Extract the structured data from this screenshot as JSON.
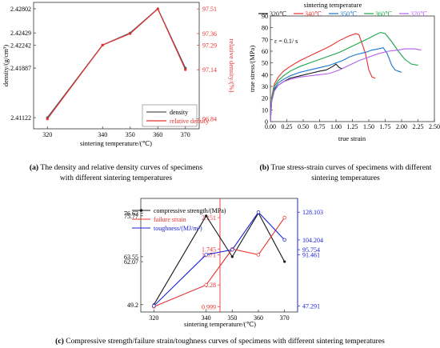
{
  "chart_data": [
    {
      "type": "line",
      "panel_label": "a",
      "caption": [
        "The density and relative density curves of specimens",
        "with different sintering temperatures"
      ],
      "xlabel": "sintering temperature/(℃)",
      "ylabel_left": "density/(g/cm³)",
      "ylabel_right": "relative density/(%)",
      "x_ticks": [
        "320",
        "340",
        "350",
        "360",
        "370"
      ],
      "y_left_ticks": [
        "2.42802",
        "2.42429",
        "2.42242",
        "2.41887",
        "2.41122"
      ],
      "y_right_ticks": [
        "97.51",
        "97.36",
        "97.29",
        "97.14",
        "96.84"
      ],
      "legend_position": "bottom-right",
      "colors": {
        "density": "#555555",
        "relative_density": "#e8302f"
      },
      "series": [
        {
          "name": "density",
          "x": [
            320,
            340,
            350,
            360,
            370
          ],
          "y": [
            2.41122,
            2.42242,
            2.42429,
            2.42802,
            2.41887
          ]
        },
        {
          "name": "relative density",
          "x": [
            320,
            340,
            350,
            360,
            370
          ],
          "y": [
            96.84,
            97.29,
            97.36,
            97.51,
            97.14
          ]
        }
      ]
    },
    {
      "type": "line",
      "panel_label": "b",
      "caption": [
        "True stress-strain curves of specimens with different",
        "sintering temperatures"
      ],
      "title": "sintering temperature",
      "xlabel": "true strain",
      "ylabel": "true stress/(MPa)",
      "annotation": "ε = 0.1/ s",
      "xlim": [
        0,
        2.5
      ],
      "ylim": [
        0,
        90
      ],
      "x_ticks": [
        "0.00",
        "0.25",
        "0.50",
        "0.75",
        "1.00",
        "1.25",
        "1.50",
        "1.75",
        "2.00",
        "2.25",
        "2.50"
      ],
      "y_ticks": [
        "0",
        "10",
        "20",
        "30",
        "40",
        "50",
        "60",
        "70",
        "80",
        "90"
      ],
      "legend_position": "top",
      "series": [
        {
          "name": "320℃",
          "color": "#1a1a1a",
          "points": [
            [
              0,
              0
            ],
            [
              0.02,
              18
            ],
            [
              0.06,
              27
            ],
            [
              0.12,
              31
            ],
            [
              0.2,
              34
            ],
            [
              0.3,
              37
            ],
            [
              0.45,
              39
            ],
            [
              0.6,
              41
            ],
            [
              0.75,
              43
            ],
            [
              0.85,
              44
            ],
            [
              0.95,
              47
            ],
            [
              1.0,
              49
            ],
            [
              1.05,
              46
            ],
            [
              1.1,
              45
            ]
          ]
        },
        {
          "name": "340℃",
          "color": "#e8302f",
          "points": [
            [
              0,
              0
            ],
            [
              0.02,
              21
            ],
            [
              0.06,
              32
            ],
            [
              0.12,
              38
            ],
            [
              0.2,
              43
            ],
            [
              0.3,
              47
            ],
            [
              0.45,
              52
            ],
            [
              0.6,
              56
            ],
            [
              0.75,
              60
            ],
            [
              0.9,
              64
            ],
            [
              1.05,
              69
            ],
            [
              1.2,
              73
            ],
            [
              1.3,
              75
            ],
            [
              1.35,
              74
            ],
            [
              1.45,
              58
            ],
            [
              1.5,
              44
            ],
            [
              1.55,
              38
            ],
            [
              1.6,
              37
            ]
          ]
        },
        {
          "name": "350℃",
          "color": "#1874cd",
          "points": [
            [
              0,
              0
            ],
            [
              0.02,
              19
            ],
            [
              0.06,
              28
            ],
            [
              0.12,
              33
            ],
            [
              0.2,
              36
            ],
            [
              0.3,
              39
            ],
            [
              0.45,
              42
            ],
            [
              0.6,
              44
            ],
            [
              0.75,
              46
            ],
            [
              0.9,
              48
            ],
            [
              1.0,
              50
            ],
            [
              1.1,
              52
            ],
            [
              1.2,
              55
            ],
            [
              1.3,
              57
            ],
            [
              1.45,
              59
            ],
            [
              1.55,
              61
            ],
            [
              1.65,
              62
            ],
            [
              1.72,
              63
            ],
            [
              1.78,
              58
            ],
            [
              1.85,
              48
            ],
            [
              1.9,
              44
            ],
            [
              1.95,
              43
            ],
            [
              2.0,
              42
            ]
          ]
        },
        {
          "name": "360℃",
          "color": "#1aa64a",
          "points": [
            [
              0,
              0
            ],
            [
              0.02,
              20
            ],
            [
              0.06,
              30
            ],
            [
              0.12,
              35
            ],
            [
              0.2,
              39
            ],
            [
              0.3,
              43
            ],
            [
              0.45,
              47
            ],
            [
              0.6,
              50
            ],
            [
              0.75,
              53
            ],
            [
              0.9,
              56
            ],
            [
              1.05,
              59
            ],
            [
              1.2,
              63
            ],
            [
              1.35,
              67
            ],
            [
              1.5,
              71
            ],
            [
              1.6,
              74
            ],
            [
              1.68,
              76
            ],
            [
              1.75,
              75
            ],
            [
              1.85,
              68
            ],
            [
              1.95,
              60
            ],
            [
              2.05,
              53
            ],
            [
              2.15,
              49
            ],
            [
              2.25,
              48
            ]
          ]
        },
        {
          "name": "370℃",
          "color": "#b45ff0",
          "points": [
            [
              0,
              0
            ],
            [
              0.02,
              17
            ],
            [
              0.06,
              26
            ],
            [
              0.12,
              31
            ],
            [
              0.2,
              34
            ],
            [
              0.3,
              36
            ],
            [
              0.45,
              38
            ],
            [
              0.6,
              39
            ],
            [
              0.75,
              40
            ],
            [
              0.9,
              41
            ],
            [
              1.05,
              44
            ],
            [
              1.2,
              48
            ],
            [
              1.35,
              52
            ],
            [
              1.5,
              55
            ],
            [
              1.65,
              58
            ],
            [
              1.8,
              60
            ],
            [
              1.95,
              61
            ],
            [
              2.05,
              62
            ],
            [
              2.2,
              62
            ],
            [
              2.3,
              61
            ]
          ]
        }
      ]
    },
    {
      "type": "line",
      "panel_label": "c",
      "caption": "Compressive strength/failure strain/toughness curves of specimens with different sintering temperatures",
      "xlabel": "sintering temperature/(℃)",
      "x_ticks": [
        "320",
        "340",
        "350",
        "360",
        "370"
      ],
      "cs_ticks": [
        "76.62",
        "75.77",
        "63.55",
        "62.07",
        "49.2"
      ],
      "fs_ticks": [
        "2.151",
        "1.745",
        "1.671",
        "1.28",
        "0.999"
      ],
      "tough_ticks": [
        "128.103",
        "104.204",
        "95.754",
        "91.461",
        "47.291"
      ],
      "legend_position": "top-left",
      "series": [
        {
          "name": "compressive strength/(MPa)",
          "color": "#1a1a1a",
          "x": [
            320,
            340,
            350,
            360,
            370
          ],
          "y": [
            49.2,
            75.77,
            63.55,
            76.62,
            62.07
          ]
        },
        {
          "name": "failure strain",
          "color": "#e8302f",
          "x": [
            320,
            340,
            350,
            360,
            370
          ],
          "y": [
            0.999,
            1.28,
            1.745,
            1.671,
            2.151
          ]
        },
        {
          "name": "toughness/(MJ/m³)",
          "color": "#1a22d8",
          "x": [
            320,
            340,
            350,
            360,
            370
          ],
          "y": [
            47.291,
            91.461,
            95.754,
            128.103,
            104.204
          ]
        }
      ]
    }
  ]
}
